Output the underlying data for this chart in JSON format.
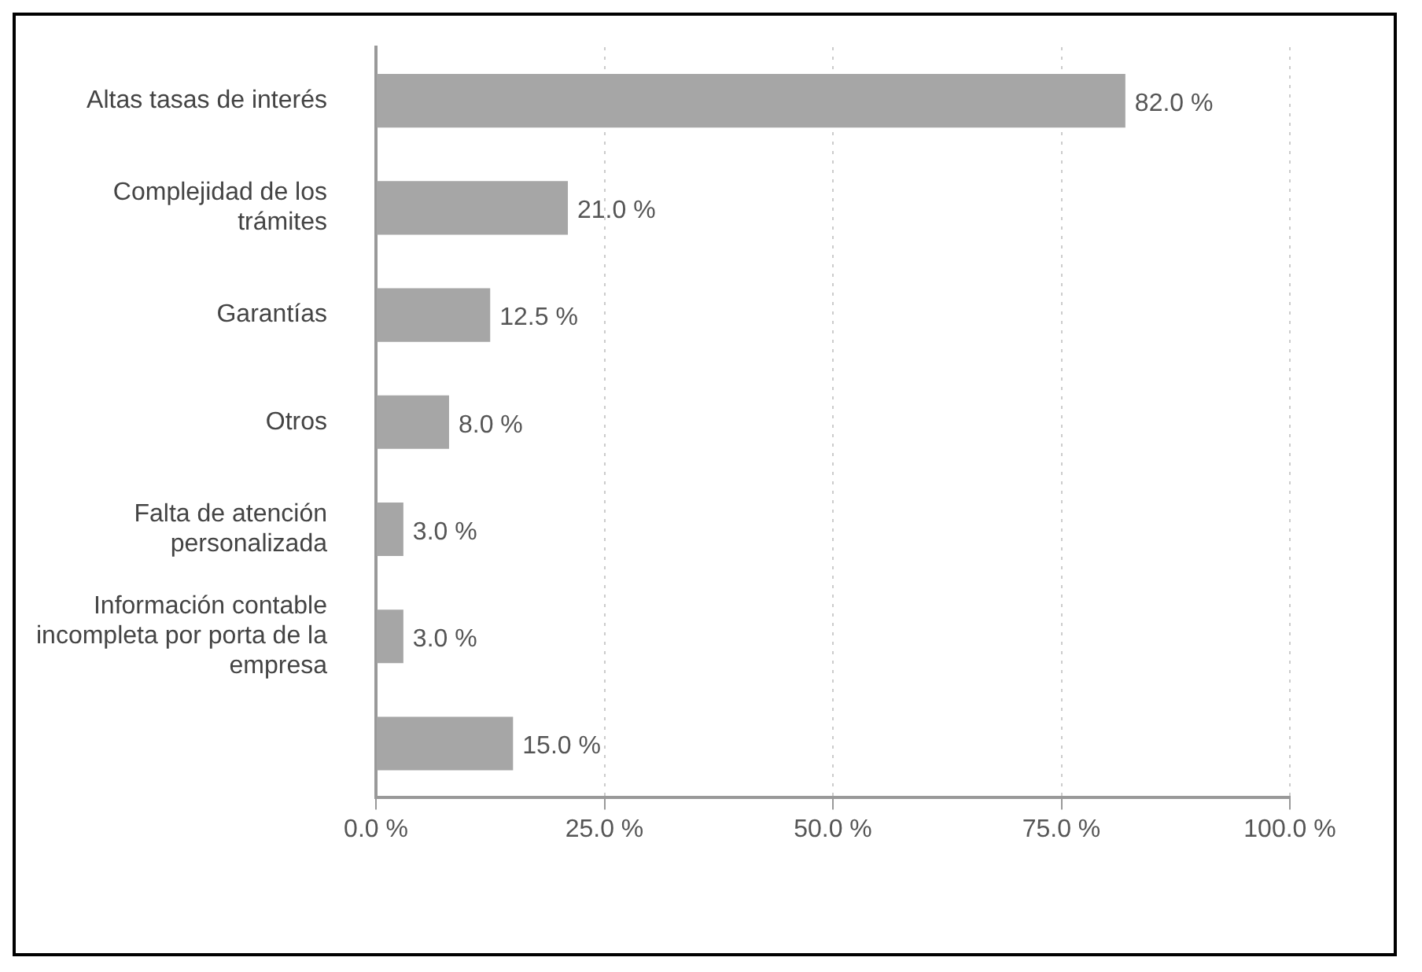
{
  "chart_data": {
    "type": "bar",
    "orientation": "horizontal",
    "categories": [
      "Altas tasas de interés",
      "Complejidad de los trámites",
      "Garantías",
      "Otros",
      "Falta de atención personalizada",
      "Información contable incompleta por porta de la empresa",
      null
    ],
    "values": [
      82.0,
      21.0,
      12.5,
      8.0,
      3.0,
      3.0,
      15.0
    ],
    "value_labels": [
      "82.0 %",
      "21.0 %",
      "12.5 %",
      "8.0 %",
      "3.0 %",
      "3.0 %",
      "15.0 %"
    ],
    "color": "#a6a6a6",
    "xlim": [
      0,
      100
    ],
    "xticks": [
      {
        "value": 0,
        "label": "0.0 %"
      },
      {
        "value": 25,
        "label": "25.0 %"
      },
      {
        "value": 50,
        "label": "50.0 %"
      },
      {
        "value": 75,
        "label": "75.0 %"
      },
      {
        "value": 100,
        "label": "100.0 %"
      }
    ],
    "grid": "x",
    "legend": false
  }
}
